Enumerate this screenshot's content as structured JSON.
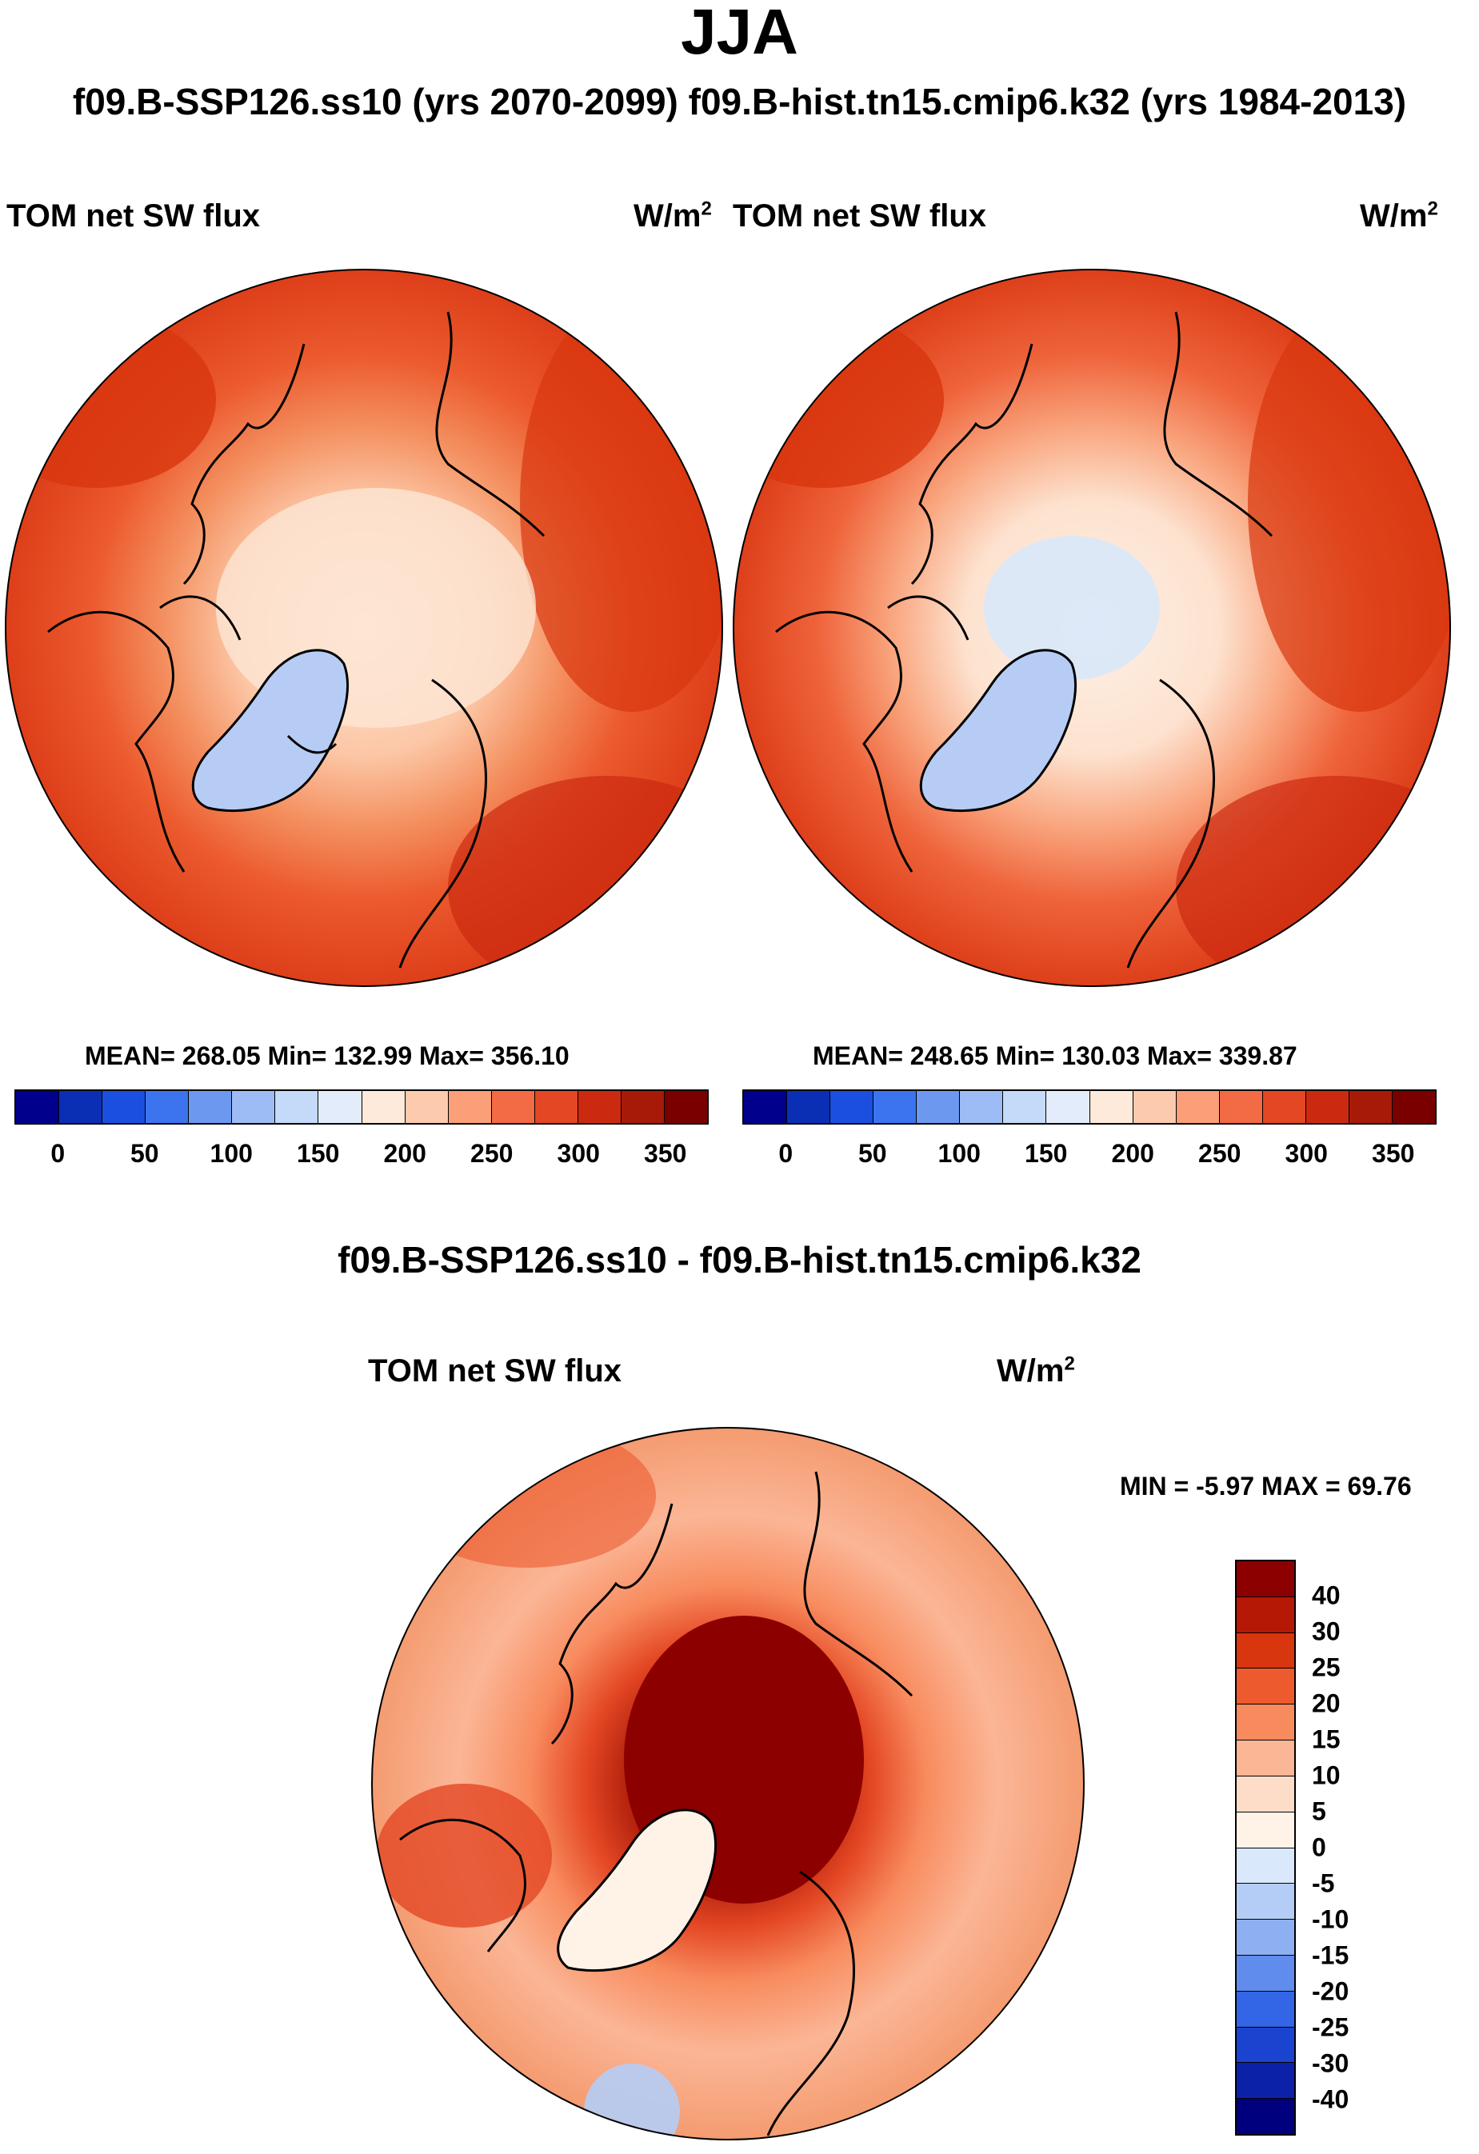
{
  "title": "JJA",
  "subtitle": "f09.B-SSP126.ss10 (yrs 2070-2099)  f09.B-hist.tn15.cmip6.k32 (yrs 1984-2013)",
  "left_panel": {
    "variable": "TOM net SW flux",
    "units": "W/m",
    "units_exp": "2",
    "stats": "MEAN= 268.05  Min= 132.99  Max= 356.10",
    "mean": 268.05,
    "min": 132.99,
    "max": 356.1
  },
  "right_panel": {
    "variable": "TOM net SW flux",
    "units": "W/m",
    "units_exp": "2",
    "stats": "MEAN= 248.65  Min= 130.03  Max= 339.87",
    "mean": 248.65,
    "min": 130.03,
    "max": 339.87
  },
  "abs_colorbar": {
    "ticks": [
      "0",
      "50",
      "100",
      "150",
      "200",
      "250",
      "300",
      "350"
    ],
    "colors": [
      "#00008c",
      "#0a2fb4",
      "#1a4fe0",
      "#3c74f0",
      "#6d98ef",
      "#9dbbf4",
      "#c5d9f8",
      "#e2ecfb",
      "#fdeadb",
      "#fccaad",
      "#fa9f78",
      "#f26b44",
      "#e44724",
      "#cc2a10",
      "#a81a08",
      "#7a0000"
    ]
  },
  "diff_panel": {
    "title": "f09.B-SSP126.ss10 - f09.B-hist.tn15.cmip6.k32",
    "variable": "TOM net SW flux",
    "units": "W/m",
    "units_exp": "2",
    "minmax": "MIN =  -5.97 MAX =  69.76",
    "min": -5.97,
    "max": 69.76
  },
  "diff_colorbar": {
    "ticks": [
      "40",
      "30",
      "25",
      "20",
      "15",
      "10",
      "5",
      "0",
      "-5",
      "-10",
      "-15",
      "-20",
      "-25",
      "-30",
      "-40"
    ],
    "colors": [
      "#8c0000",
      "#b51905",
      "#d8360e",
      "#ec5a2e",
      "#f88b5e",
      "#fbb696",
      "#fdddc8",
      "#fff3e8",
      "#d9e8fa",
      "#b4cdf6",
      "#8eaff2",
      "#5f8ced",
      "#3366e6",
      "#1a44cf",
      "#0b22a8",
      "#00007f"
    ]
  },
  "icons": {
    "map_left": "polar-map-icon",
    "map_right": "polar-map-icon",
    "map_diff": "polar-map-icon"
  }
}
